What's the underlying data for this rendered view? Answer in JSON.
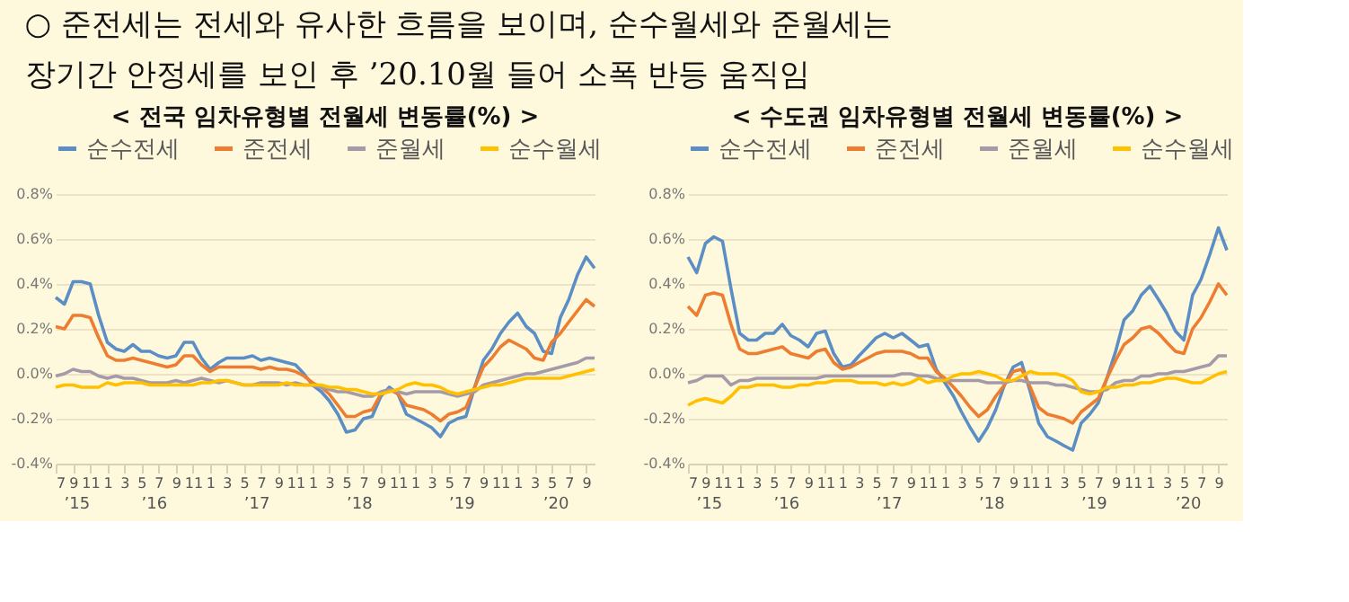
{
  "chart_data": [
    {
      "type": "line",
      "title": "< 전국 임차유형별 전월세 변동률(%) >",
      "legend": "top",
      "grid": "y",
      "line_style": "solid",
      "x": [
        "2015-07",
        "2015-08",
        "2015-09",
        "2015-10",
        "2015-11",
        "2015-12",
        "2016-01",
        "2016-02",
        "2016-03",
        "2016-04",
        "2016-05",
        "2016-06",
        "2016-07",
        "2016-08",
        "2016-09",
        "2016-10",
        "2016-11",
        "2016-12",
        "2017-01",
        "2017-02",
        "2017-03",
        "2017-04",
        "2017-05",
        "2017-06",
        "2017-07",
        "2017-08",
        "2017-09",
        "2017-10",
        "2017-11",
        "2017-12",
        "2018-01",
        "2018-02",
        "2018-03",
        "2018-04",
        "2018-05",
        "2018-06",
        "2018-07",
        "2018-08",
        "2018-09",
        "2018-10",
        "2018-11",
        "2018-12",
        "2019-01",
        "2019-02",
        "2019-03",
        "2019-04",
        "2019-05",
        "2019-06",
        "2019-07",
        "2019-08",
        "2019-09",
        "2019-10",
        "2019-11",
        "2019-12",
        "2020-01",
        "2020-02",
        "2020-03",
        "2020-04",
        "2020-05",
        "2020-06",
        "2020-07",
        "2020-08",
        "2020-09",
        "2020-10"
      ],
      "xlim": [
        "2015-07",
        "2020-10"
      ],
      "xticks": [
        {
          "value": "2015-07",
          "label": "7"
        },
        {
          "value": "2015-09",
          "label": "9"
        },
        {
          "value": "2015-11",
          "label": "11"
        },
        {
          "value": "2016-01",
          "label": "1"
        },
        {
          "value": "2016-03",
          "label": "3"
        },
        {
          "value": "2016-05",
          "label": "5"
        },
        {
          "value": "2016-07",
          "label": "7"
        },
        {
          "value": "2016-09",
          "label": "9"
        },
        {
          "value": "2016-11",
          "label": "11"
        },
        {
          "value": "2017-01",
          "label": "1"
        },
        {
          "value": "2017-03",
          "label": "3"
        },
        {
          "value": "2017-05",
          "label": "5"
        },
        {
          "value": "2017-07",
          "label": "7"
        },
        {
          "value": "2017-09",
          "label": "9"
        },
        {
          "value": "2017-11",
          "label": "11"
        },
        {
          "value": "2018-01",
          "label": "1"
        },
        {
          "value": "2018-03",
          "label": "3"
        },
        {
          "value": "2018-05",
          "label": "5"
        },
        {
          "value": "2018-07",
          "label": "7"
        },
        {
          "value": "2018-09",
          "label": "9"
        },
        {
          "value": "2018-11",
          "label": "11"
        },
        {
          "value": "2019-01",
          "label": "1"
        },
        {
          "value": "2019-03",
          "label": "3"
        },
        {
          "value": "2019-05",
          "label": "5"
        },
        {
          "value": "2019-07",
          "label": "7"
        },
        {
          "value": "2019-09",
          "label": "9"
        },
        {
          "value": "2019-11",
          "label": "11"
        },
        {
          "value": "2020-01",
          "label": "1"
        },
        {
          "value": "2020-03",
          "label": "3"
        },
        {
          "value": "2020-05",
          "label": "5"
        },
        {
          "value": "2020-07",
          "label": "7"
        },
        {
          "value": "2020-09",
          "label": "9"
        }
      ],
      "annotations": [
        "’15",
        "’16",
        "’17",
        "’18",
        "’19",
        "’20"
      ],
      "ylim": [
        -0.4,
        0.8
      ],
      "yticks": [
        {
          "value": -0.4,
          "label": "-0.4%"
        },
        {
          "value": -0.2,
          "label": "-0.2%"
        },
        {
          "value": 0,
          "label": "0.0%"
        },
        {
          "value": 0.2,
          "label": "0.2%"
        },
        {
          "value": 0.4,
          "label": "0.4%"
        },
        {
          "value": 0.6,
          "label": "0.6%"
        },
        {
          "value": 0.8,
          "label": "0.8%"
        }
      ],
      "series": [
        {
          "name": "순수전세",
          "color": "#5b8ec4",
          "values": [
            0.34,
            0.31,
            0.41,
            0.41,
            0.4,
            0.26,
            0.14,
            0.11,
            0.1,
            0.13,
            0.1,
            0.1,
            0.08,
            0.07,
            0.08,
            0.14,
            0.14,
            0.07,
            0.02,
            0.05,
            0.07,
            0.07,
            0.07,
            0.08,
            0.06,
            0.07,
            0.06,
            0.05,
            0.04,
            0.0,
            -0.05,
            -0.08,
            -0.12,
            -0.18,
            -0.26,
            -0.25,
            -0.2,
            -0.19,
            -0.1,
            -0.06,
            -0.09,
            -0.18,
            -0.2,
            -0.22,
            -0.24,
            -0.28,
            -0.22,
            -0.2,
            -0.19,
            -0.06,
            0.06,
            0.11,
            0.18,
            0.23,
            0.27,
            0.21,
            0.18,
            0.1,
            0.09,
            0.25,
            0.33,
            0.44,
            0.52,
            0.47
          ]
        },
        {
          "name": "준전세",
          "color": "#ed7d31",
          "values": [
            0.21,
            0.2,
            0.26,
            0.26,
            0.25,
            0.16,
            0.08,
            0.06,
            0.06,
            0.07,
            0.06,
            0.05,
            0.04,
            0.03,
            0.04,
            0.08,
            0.08,
            0.04,
            0.01,
            0.03,
            0.03,
            0.03,
            0.03,
            0.03,
            0.02,
            0.03,
            0.02,
            0.02,
            0.01,
            -0.01,
            -0.04,
            -0.06,
            -0.09,
            -0.14,
            -0.19,
            -0.19,
            -0.17,
            -0.16,
            -0.09,
            -0.07,
            -0.09,
            -0.14,
            -0.15,
            -0.16,
            -0.18,
            -0.21,
            -0.18,
            -0.17,
            -0.15,
            -0.06,
            0.03,
            0.07,
            0.12,
            0.15,
            0.13,
            0.11,
            0.07,
            0.06,
            0.14,
            0.18,
            0.23,
            0.28,
            0.33,
            0.3
          ]
        },
        {
          "name": "준월세",
          "color": "#a59aa8",
          "values": [
            -0.01,
            0.0,
            0.02,
            0.01,
            0.01,
            -0.01,
            -0.02,
            -0.01,
            -0.02,
            -0.02,
            -0.03,
            -0.04,
            -0.04,
            -0.04,
            -0.03,
            -0.04,
            -0.03,
            -0.02,
            -0.03,
            -0.04,
            -0.03,
            -0.04,
            -0.05,
            -0.05,
            -0.04,
            -0.04,
            -0.04,
            -0.05,
            -0.04,
            -0.05,
            -0.05,
            -0.06,
            -0.07,
            -0.08,
            -0.08,
            -0.09,
            -0.1,
            -0.1,
            -0.08,
            -0.07,
            -0.08,
            -0.09,
            -0.08,
            -0.08,
            -0.08,
            -0.08,
            -0.09,
            -0.1,
            -0.09,
            -0.08,
            -0.05,
            -0.04,
            -0.03,
            -0.02,
            -0.01,
            0.0,
            0.0,
            0.01,
            0.02,
            0.03,
            0.04,
            0.05,
            0.07,
            0.07
          ]
        },
        {
          "name": "순수월세",
          "color": "#ffc000",
          "values": [
            -0.06,
            -0.05,
            -0.05,
            -0.06,
            -0.06,
            -0.06,
            -0.04,
            -0.05,
            -0.04,
            -0.04,
            -0.04,
            -0.05,
            -0.05,
            -0.05,
            -0.05,
            -0.05,
            -0.05,
            -0.04,
            -0.04,
            -0.03,
            -0.03,
            -0.04,
            -0.05,
            -0.05,
            -0.05,
            -0.05,
            -0.05,
            -0.04,
            -0.05,
            -0.05,
            -0.05,
            -0.05,
            -0.06,
            -0.06,
            -0.07,
            -0.07,
            -0.08,
            -0.09,
            -0.09,
            -0.08,
            -0.07,
            -0.05,
            -0.04,
            -0.05,
            -0.05,
            -0.06,
            -0.08,
            -0.09,
            -0.08,
            -0.07,
            -0.06,
            -0.05,
            -0.05,
            -0.04,
            -0.03,
            -0.02,
            -0.02,
            -0.02,
            -0.02,
            -0.02,
            -0.01,
            0.0,
            0.01,
            0.02
          ]
        }
      ]
    },
    {
      "type": "line",
      "title": "< 수도권 임차유형별 전월세 변동률(%) >",
      "legend": "top",
      "grid": "y",
      "line_style": "solid",
      "x": [
        "2015-07",
        "2015-08",
        "2015-09",
        "2015-10",
        "2015-11",
        "2015-12",
        "2016-01",
        "2016-02",
        "2016-03",
        "2016-04",
        "2016-05",
        "2016-06",
        "2016-07",
        "2016-08",
        "2016-09",
        "2016-10",
        "2016-11",
        "2016-12",
        "2017-01",
        "2017-02",
        "2017-03",
        "2017-04",
        "2017-05",
        "2017-06",
        "2017-07",
        "2017-08",
        "2017-09",
        "2017-10",
        "2017-11",
        "2017-12",
        "2018-01",
        "2018-02",
        "2018-03",
        "2018-04",
        "2018-05",
        "2018-06",
        "2018-07",
        "2018-08",
        "2018-09",
        "2018-10",
        "2018-11",
        "2018-12",
        "2019-01",
        "2019-02",
        "2019-03",
        "2019-04",
        "2019-05",
        "2019-06",
        "2019-07",
        "2019-08",
        "2019-09",
        "2019-10",
        "2019-11",
        "2019-12",
        "2020-01",
        "2020-02",
        "2020-03",
        "2020-04",
        "2020-05",
        "2020-06",
        "2020-07",
        "2020-08",
        "2020-09",
        "2020-10"
      ],
      "xlim": [
        "2015-07",
        "2020-10"
      ],
      "xticks": [
        {
          "value": "2015-07",
          "label": "7"
        },
        {
          "value": "2015-09",
          "label": "9"
        },
        {
          "value": "2015-11",
          "label": "11"
        },
        {
          "value": "2016-01",
          "label": "1"
        },
        {
          "value": "2016-03",
          "label": "3"
        },
        {
          "value": "2016-05",
          "label": "5"
        },
        {
          "value": "2016-07",
          "label": "7"
        },
        {
          "value": "2016-09",
          "label": "9"
        },
        {
          "value": "2016-11",
          "label": "11"
        },
        {
          "value": "2017-01",
          "label": "1"
        },
        {
          "value": "2017-03",
          "label": "3"
        },
        {
          "value": "2017-05",
          "label": "5"
        },
        {
          "value": "2017-07",
          "label": "7"
        },
        {
          "value": "2017-09",
          "label": "9"
        },
        {
          "value": "2017-11",
          "label": "11"
        },
        {
          "value": "2018-01",
          "label": "1"
        },
        {
          "value": "2018-03",
          "label": "3"
        },
        {
          "value": "2018-05",
          "label": "5"
        },
        {
          "value": "2018-07",
          "label": "7"
        },
        {
          "value": "2018-09",
          "label": "9"
        },
        {
          "value": "2018-11",
          "label": "11"
        },
        {
          "value": "2019-01",
          "label": "1"
        },
        {
          "value": "2019-03",
          "label": "3"
        },
        {
          "value": "2019-05",
          "label": "5"
        },
        {
          "value": "2019-07",
          "label": "7"
        },
        {
          "value": "2019-09",
          "label": "9"
        },
        {
          "value": "2019-11",
          "label": "11"
        },
        {
          "value": "2020-01",
          "label": "1"
        },
        {
          "value": "2020-03",
          "label": "3"
        },
        {
          "value": "2020-05",
          "label": "5"
        },
        {
          "value": "2020-07",
          "label": "7"
        },
        {
          "value": "2020-09",
          "label": "9"
        }
      ],
      "annotations": [
        "’15",
        "’16",
        "’17",
        "’18",
        "’19",
        "’20"
      ],
      "ylim": [
        -0.4,
        0.8
      ],
      "yticks": [
        {
          "value": -0.4,
          "label": "-0.4%"
        },
        {
          "value": -0.2,
          "label": "-0.2%"
        },
        {
          "value": 0,
          "label": "0.0%"
        },
        {
          "value": 0.2,
          "label": "0.2%"
        },
        {
          "value": 0.4,
          "label": "0.4%"
        },
        {
          "value": 0.6,
          "label": "0.6%"
        },
        {
          "value": 0.8,
          "label": "0.8%"
        }
      ],
      "series": [
        {
          "name": "순수전세",
          "color": "#5b8ec4",
          "values": [
            0.52,
            0.45,
            0.58,
            0.61,
            0.59,
            0.38,
            0.18,
            0.15,
            0.15,
            0.18,
            0.18,
            0.22,
            0.17,
            0.15,
            0.12,
            0.18,
            0.19,
            0.09,
            0.03,
            0.04,
            0.08,
            0.12,
            0.16,
            0.18,
            0.16,
            0.18,
            0.15,
            0.12,
            0.13,
            0.02,
            -0.04,
            -0.1,
            -0.17,
            -0.24,
            -0.3,
            -0.24,
            -0.16,
            -0.05,
            0.03,
            0.05,
            -0.08,
            -0.22,
            -0.28,
            -0.3,
            -0.32,
            -0.34,
            -0.22,
            -0.18,
            -0.13,
            -0.02,
            0.1,
            0.24,
            0.28,
            0.35,
            0.39,
            0.33,
            0.27,
            0.19,
            0.15,
            0.35,
            0.42,
            0.53,
            0.65,
            0.55
          ]
        },
        {
          "name": "준전세",
          "color": "#ed7d31",
          "values": [
            0.3,
            0.26,
            0.35,
            0.36,
            0.35,
            0.22,
            0.11,
            0.09,
            0.09,
            0.1,
            0.11,
            0.12,
            0.09,
            0.08,
            0.07,
            0.1,
            0.11,
            0.05,
            0.02,
            0.03,
            0.05,
            0.07,
            0.09,
            0.1,
            0.1,
            0.1,
            0.09,
            0.07,
            0.07,
            0.01,
            -0.02,
            -0.06,
            -0.1,
            -0.15,
            -0.19,
            -0.16,
            -0.1,
            -0.05,
            0.01,
            0.02,
            -0.06,
            -0.15,
            -0.18,
            -0.19,
            -0.2,
            -0.22,
            -0.17,
            -0.14,
            -0.11,
            -0.02,
            0.06,
            0.13,
            0.16,
            0.2,
            0.21,
            0.18,
            0.14,
            0.1,
            0.09,
            0.2,
            0.25,
            0.32,
            0.4,
            0.35
          ]
        },
        {
          "name": "준월세",
          "color": "#a59aa8",
          "values": [
            -0.04,
            -0.03,
            -0.01,
            -0.01,
            -0.01,
            -0.05,
            -0.03,
            -0.03,
            -0.02,
            -0.02,
            -0.02,
            -0.02,
            -0.02,
            -0.02,
            -0.02,
            -0.02,
            -0.01,
            -0.01,
            -0.01,
            -0.01,
            -0.01,
            -0.01,
            -0.01,
            -0.01,
            -0.01,
            0.0,
            0.0,
            -0.01,
            -0.01,
            -0.02,
            -0.03,
            -0.03,
            -0.03,
            -0.03,
            -0.03,
            -0.04,
            -0.04,
            -0.04,
            -0.03,
            -0.03,
            -0.04,
            -0.04,
            -0.04,
            -0.05,
            -0.05,
            -0.06,
            -0.07,
            -0.08,
            -0.08,
            -0.07,
            -0.04,
            -0.03,
            -0.03,
            -0.01,
            -0.01,
            0.0,
            0.0,
            0.01,
            0.01,
            0.02,
            0.03,
            0.04,
            0.08,
            0.08
          ]
        },
        {
          "name": "순수월세",
          "color": "#ffc000",
          "values": [
            -0.14,
            -0.12,
            -0.11,
            -0.12,
            -0.13,
            -0.1,
            -0.06,
            -0.06,
            -0.05,
            -0.05,
            -0.05,
            -0.06,
            -0.06,
            -0.05,
            -0.05,
            -0.04,
            -0.04,
            -0.03,
            -0.03,
            -0.03,
            -0.04,
            -0.04,
            -0.04,
            -0.05,
            -0.04,
            -0.05,
            -0.04,
            -0.02,
            -0.04,
            -0.03,
            -0.03,
            -0.01,
            0.0,
            0.0,
            0.01,
            0.0,
            -0.01,
            -0.03,
            -0.03,
            -0.01,
            0.01,
            0.0,
            0.0,
            0.0,
            -0.01,
            -0.03,
            -0.08,
            -0.09,
            -0.08,
            -0.06,
            -0.06,
            -0.05,
            -0.05,
            -0.04,
            -0.04,
            -0.03,
            -0.02,
            -0.02,
            -0.03,
            -0.04,
            -0.04,
            -0.02,
            0.0,
            0.01
          ]
        }
      ]
    },
    {
      "type": "other",
      "annotations": [
        "○ 준전세는 전세와 유사한 흐름을 보이며, 순수월세와 준월세는",
        "장기간 안정세를 보인 후 ’20.10월 들어 소폭 반등 움직임"
      ]
    }
  ]
}
